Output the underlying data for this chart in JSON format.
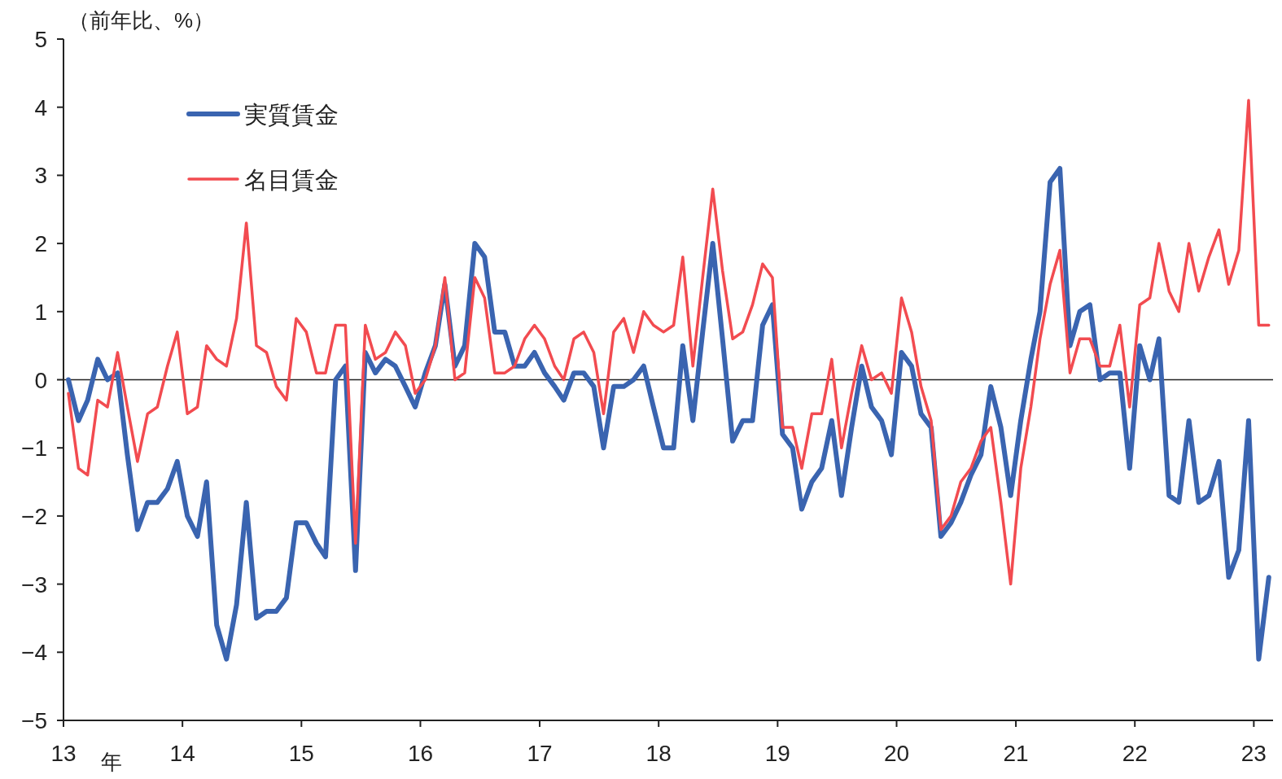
{
  "chart_data": {
    "type": "line",
    "ylabel": "（前年比、%）",
    "xlabel": "年",
    "x": [
      "2013-01-16",
      "2013-02-16",
      "2013-03-16",
      "2013-04-16",
      "2013-05-16",
      "2013-06-16",
      "2013-07-16",
      "2013-08-16",
      "2013-09-16",
      "2013-10-16",
      "2013-11-16",
      "2013-12-16",
      "2014-01-16",
      "2014-02-16",
      "2014-03-16",
      "2014-04-16",
      "2014-05-16",
      "2014-06-16",
      "2014-07-16",
      "2014-08-16",
      "2014-09-16",
      "2014-10-16",
      "2014-11-16",
      "2014-12-16",
      "2015-01-16",
      "2015-02-16",
      "2015-03-16",
      "2015-04-16",
      "2015-05-16",
      "2015-06-16",
      "2015-07-16",
      "2015-08-16",
      "2015-09-16",
      "2015-10-16",
      "2015-11-16",
      "2015-12-16",
      "2016-01-16",
      "2016-02-16",
      "2016-03-16",
      "2016-04-16",
      "2016-05-16",
      "2016-06-16",
      "2016-07-16",
      "2016-08-16",
      "2016-09-16",
      "2016-10-16",
      "2016-11-16",
      "2016-12-16",
      "2017-01-16",
      "2017-02-16",
      "2017-03-16",
      "2017-04-16",
      "2017-05-16",
      "2017-06-16",
      "2017-07-16",
      "2017-08-16",
      "2017-09-16",
      "2017-10-16",
      "2017-11-16",
      "2017-12-16",
      "2018-01-16",
      "2018-02-16",
      "2018-03-16",
      "2018-04-16",
      "2018-05-16",
      "2018-06-16",
      "2018-07-16",
      "2018-08-16",
      "2018-09-16",
      "2018-10-16",
      "2018-11-16",
      "2018-12-16",
      "2019-01-16",
      "2019-02-16",
      "2019-03-16",
      "2019-04-16",
      "2019-05-16",
      "2019-06-16",
      "2019-07-16",
      "2019-08-16",
      "2019-09-16",
      "2019-10-16",
      "2019-11-16",
      "2019-12-16",
      "2020-01-16",
      "2020-02-16",
      "2020-03-16",
      "2020-04-16",
      "2020-05-16",
      "2020-06-16",
      "2020-07-16",
      "2020-08-16",
      "2020-09-16",
      "2020-10-16",
      "2020-11-16",
      "2020-12-16",
      "2021-01-16",
      "2021-02-16",
      "2021-03-16",
      "2021-04-16",
      "2021-05-16",
      "2021-06-16",
      "2021-07-16",
      "2021-08-16",
      "2021-09-16",
      "2021-10-16",
      "2021-11-16",
      "2021-12-16",
      "2022-01-16",
      "2022-02-16",
      "2022-03-16",
      "2022-04-16",
      "2022-05-16",
      "2022-06-16",
      "2022-07-16",
      "2022-08-16",
      "2022-09-16",
      "2022-10-16",
      "2022-11-16",
      "2022-12-16",
      "2023-01-16",
      "2023-02-16"
    ],
    "series": [
      {
        "name": "実質賃金",
        "color": "#3a64b0",
        "values": [
          0.0,
          -0.6,
          -0.3,
          0.3,
          0.0,
          0.1,
          -1.1,
          -2.2,
          -1.8,
          -1.8,
          -1.6,
          -1.2,
          -2.0,
          -2.3,
          -1.5,
          -3.6,
          -4.1,
          -3.3,
          -1.8,
          -3.5,
          -3.4,
          -3.4,
          -3.2,
          -2.1,
          -2.1,
          -2.4,
          -2.6,
          0.0,
          0.2,
          -2.8,
          0.4,
          0.1,
          0.3,
          0.2,
          -0.1,
          -0.4,
          0.1,
          0.5,
          1.4,
          0.2,
          0.5,
          2.0,
          1.8,
          0.7,
          0.7,
          0.2,
          0.2,
          0.4,
          0.1,
          -0.1,
          -0.3,
          0.1,
          0.1,
          -0.1,
          -1.0,
          -0.1,
          -0.1,
          0.0,
          0.2,
          -0.4,
          -1.0,
          -1.0,
          0.5,
          -0.6,
          0.7,
          2.0,
          0.6,
          -0.9,
          -0.6,
          -0.6,
          0.8,
          1.1,
          -0.8,
          -1.0,
          -1.9,
          -1.5,
          -1.3,
          -0.6,
          -1.7,
          -0.7,
          0.2,
          -0.4,
          -0.6,
          -1.1,
          0.4,
          0.2,
          -0.5,
          -0.7,
          -2.3,
          -2.1,
          -1.8,
          -1.4,
          -1.1,
          -0.1,
          -0.7,
          -1.7,
          -0.6,
          0.3,
          1.0,
          2.9,
          3.1,
          0.5,
          1.0,
          1.1,
          0.0,
          0.1,
          0.1,
          -1.3,
          0.5,
          0.0,
          0.6,
          -1.7,
          -1.8,
          -0.6,
          -1.8,
          -1.7,
          -1.2,
          -2.9,
          -2.5,
          -0.6,
          -4.1,
          -2.9
        ]
      },
      {
        "name": "名目賃金",
        "color": "#f24b50",
        "values": [
          -0.2,
          -1.3,
          -1.4,
          -0.3,
          -0.4,
          0.4,
          -0.4,
          -1.2,
          -0.5,
          -0.4,
          0.2,
          0.7,
          -0.5,
          -0.4,
          0.5,
          0.3,
          0.2,
          0.9,
          2.3,
          0.5,
          0.4,
          -0.1,
          -0.3,
          0.9,
          0.7,
          0.1,
          0.1,
          0.8,
          0.8,
          -2.4,
          0.8,
          0.3,
          0.4,
          0.7,
          0.5,
          -0.2,
          0.0,
          0.5,
          1.5,
          0.0,
          0.1,
          1.5,
          1.2,
          0.1,
          0.1,
          0.2,
          0.6,
          0.8,
          0.6,
          0.2,
          0.0,
          0.6,
          0.7,
          0.4,
          -0.5,
          0.7,
          0.9,
          0.4,
          1.0,
          0.8,
          0.7,
          0.8,
          1.8,
          0.2,
          1.5,
          2.8,
          1.6,
          0.6,
          0.7,
          1.1,
          1.7,
          1.5,
          -0.7,
          -0.7,
          -1.3,
          -0.5,
          -0.5,
          0.3,
          -1.0,
          -0.2,
          0.5,
          0.0,
          0.1,
          -0.2,
          1.2,
          0.7,
          -0.1,
          -0.6,
          -2.2,
          -2.0,
          -1.5,
          -1.3,
          -0.9,
          -0.7,
          -1.8,
          -3.0,
          -1.3,
          -0.4,
          0.6,
          1.4,
          1.9,
          0.1,
          0.6,
          0.6,
          0.2,
          0.2,
          0.8,
          -0.4,
          1.1,
          1.2,
          2.0,
          1.3,
          1.0,
          2.0,
          1.3,
          1.8,
          2.2,
          1.4,
          1.9,
          4.1,
          0.8,
          0.8
        ]
      }
    ],
    "xlim": [
      "2013-01-01",
      "2023-03-01"
    ],
    "xticks": [
      {
        "value": "2013-01",
        "label": "13"
      },
      {
        "value": "2014-01",
        "label": "14"
      },
      {
        "value": "2015-01",
        "label": "15"
      },
      {
        "value": "2016-01",
        "label": "16"
      },
      {
        "value": "2017-01",
        "label": "17"
      },
      {
        "value": "2018-01",
        "label": "18"
      },
      {
        "value": "2019-01",
        "label": "19"
      },
      {
        "value": "2020-01",
        "label": "20"
      },
      {
        "value": "2021-01",
        "label": "21"
      },
      {
        "value": "2022-01",
        "label": "22"
      },
      {
        "value": "2023-01",
        "label": "23"
      }
    ],
    "ylim": [
      -5,
      5
    ],
    "yticks": [
      -5,
      -4,
      -3,
      -2,
      -1,
      0,
      1,
      2,
      3,
      4,
      5
    ],
    "ref_lines": [
      {
        "axis": "y",
        "value": 0,
        "color": "#222222"
      }
    ],
    "legend": "top left",
    "grid": false,
    "line_style": "solid",
    "marker": "none"
  }
}
